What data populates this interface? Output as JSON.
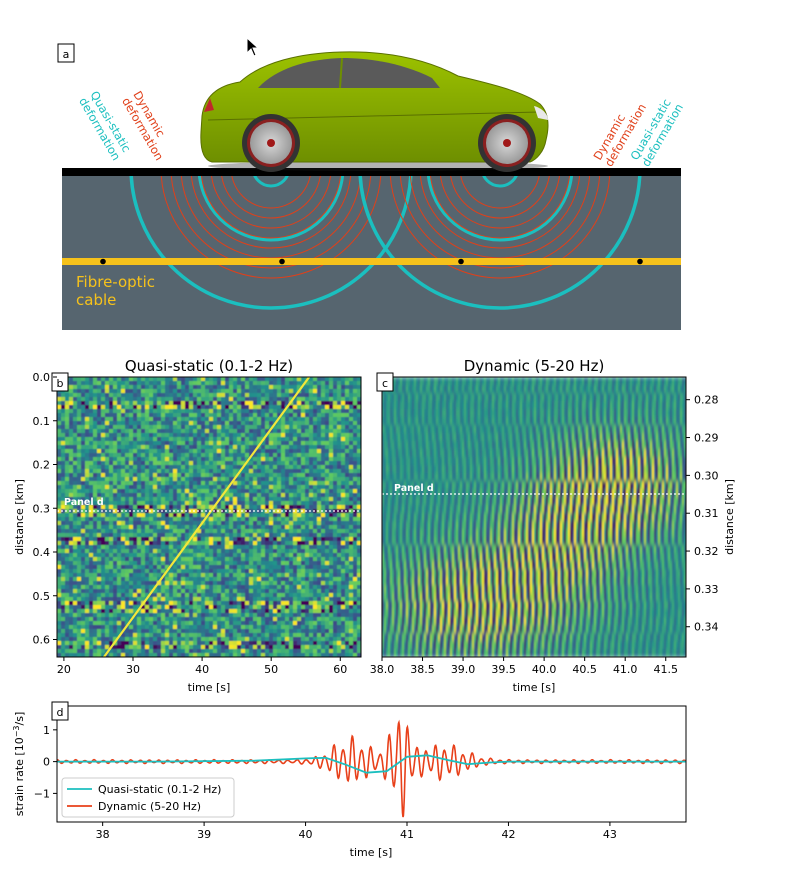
{
  "panel_a": {
    "label": "a",
    "left_quasi_label": [
      "Quasi-static",
      "deformation"
    ],
    "left_dynamic_label": [
      "Dynamic",
      "deformation"
    ],
    "right_dynamic_label": [
      "Dynamic",
      "deformation"
    ],
    "right_quasi_label": [
      "Quasi-static",
      "deformation"
    ],
    "cable_label": [
      "Fibre-optic",
      "cable"
    ],
    "colors": {
      "quasi": "#1bbfbf",
      "dynamic": "#e0401a",
      "cable": "#f6c21b",
      "ground": "#56656f",
      "car": "#8cb000"
    }
  },
  "chart_data": [
    {
      "type": "heatmap",
      "panel": "b",
      "title": "Quasi-static (0.1-2 Hz)",
      "xlabel": "time [s]",
      "ylabel": "distance [km]",
      "xlim": [
        19,
        63
      ],
      "ylim": [
        0.0,
        0.64
      ],
      "y_inverted": true,
      "xticks": [
        "20",
        "30",
        "40",
        "50",
        "60"
      ],
      "yticks": [
        "0.0",
        "0.1",
        "0.2",
        "0.3",
        "0.4",
        "0.5",
        "0.6"
      ],
      "annotation": "Panel d",
      "annotation_distance_km": 0.305,
      "vehicle_track": {
        "start": [
          25.8,
          0.64
        ],
        "end": [
          55.5,
          0.0
        ]
      },
      "colormap": "viridis"
    },
    {
      "type": "heatmap",
      "panel": "c",
      "title": "Dynamic (5-20 Hz)",
      "xlabel": "time [s]",
      "ylabel": "distance [km]",
      "xlim": [
        38.0,
        41.75
      ],
      "ylim": [
        0.274,
        0.348
      ],
      "y_inverted": true,
      "y_axis_side": "right",
      "xticks": [
        "38.0",
        "38.5",
        "39.0",
        "39.5",
        "40.0",
        "40.5",
        "41.0",
        "41.5"
      ],
      "yticks": [
        "0.28",
        "0.29",
        "0.30",
        "0.31",
        "0.32",
        "0.33",
        "0.34"
      ],
      "annotation": "Panel d",
      "annotation_distance_km": 0.304,
      "colormap": "viridis"
    },
    {
      "type": "line",
      "panel": "d",
      "xlabel": "time [s]",
      "ylabel_parts": [
        "strain rate [10",
        "−3",
        "/s]"
      ],
      "xlim": [
        37.55,
        43.75
      ],
      "ylim": [
        -1.9,
        1.75
      ],
      "xticks": [
        "38",
        "39",
        "40",
        "41",
        "42",
        "43"
      ],
      "yticks": [
        "1",
        "0",
        "−1"
      ],
      "legend_position": "lower-left",
      "series": [
        {
          "name": "Quasi-static (0.1-2 Hz)",
          "color": "#1bbfbf",
          "x": [
            37.55,
            38.5,
            39.5,
            40.0,
            40.2,
            40.4,
            40.6,
            40.8,
            41.0,
            41.2,
            41.4,
            41.6,
            41.8,
            42.0,
            42.5,
            43.75
          ],
          "y": [
            0.0,
            0.0,
            0.03,
            0.1,
            0.12,
            -0.1,
            -0.35,
            -0.3,
            0.15,
            0.2,
            0.05,
            -0.08,
            -0.03,
            0.0,
            0.0,
            0.0
          ]
        },
        {
          "name": "Dynamic (5-20 Hz)",
          "color": "#e8401a",
          "x": [
            37.55,
            43.75
          ],
          "y": [
            0.0,
            0.0
          ],
          "peak": {
            "t": 40.93,
            "max": 1.62,
            "min": -1.85
          }
        }
      ]
    }
  ]
}
